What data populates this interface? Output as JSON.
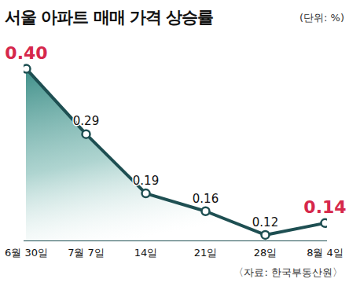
{
  "chart_data": {
    "type": "line",
    "title": "서울 아파트 매매 가격 상승률",
    "subtitle": "(단위: %)",
    "source": "〈자료: 한국부동산원〉",
    "categories": [
      "6월 30일",
      "7월 7일",
      "14일",
      "21일",
      "28일",
      "8월 4일"
    ],
    "values": [
      0.4,
      0.29,
      0.19,
      0.16,
      0.12,
      0.14
    ],
    "value_labels": [
      "0.40",
      "0.29",
      "0.19",
      "0.16",
      "0.12",
      "0.14"
    ],
    "color": "#1e4f52",
    "ylim": [
      0.11,
      0.42
    ],
    "data_labels": true,
    "tick_labels": "x",
    "marker": "circle"
  }
}
